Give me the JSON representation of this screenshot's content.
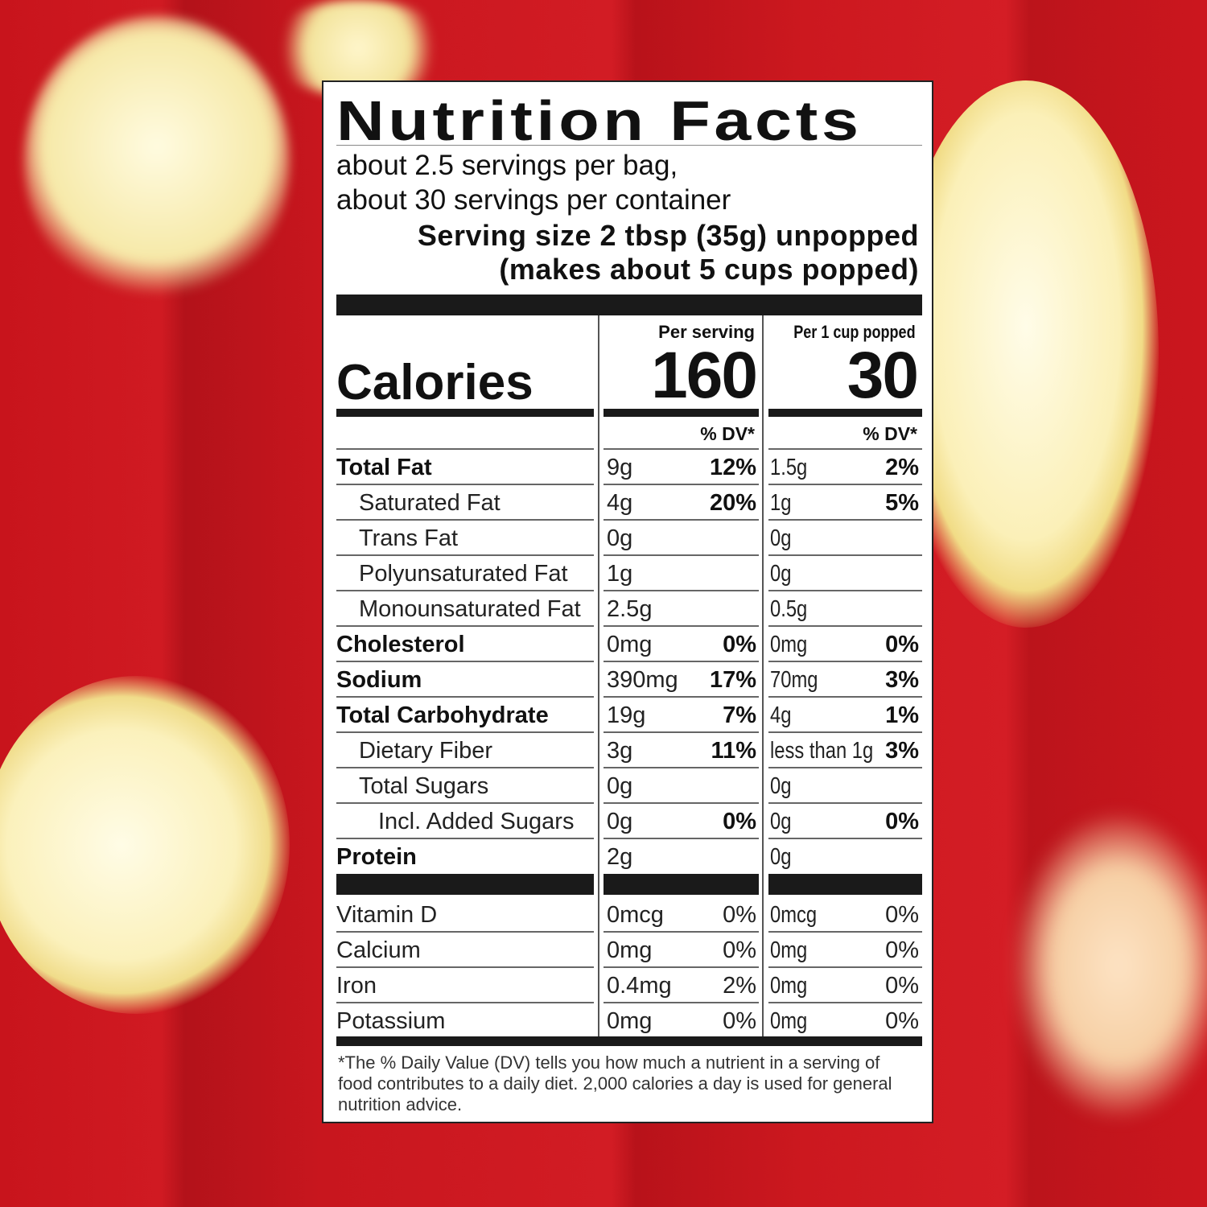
{
  "label": {
    "title": "Nutrition Facts",
    "servings_per_bag": "about 2.5 servings per bag,",
    "servings_per_container": "about 30 servings per container",
    "serving_size": "Serving size 2 tbsp (35g) unpopped",
    "serving_size_popped": "(makes about 5 cups popped)",
    "calories_label": "Calories",
    "col1_header": "Per serving",
    "col2_header": "Per 1 cup popped",
    "calories_col1": "160",
    "calories_col2": "30",
    "dv_header": "% DV*",
    "nutrients": [
      {
        "name": "Total Fat",
        "bold": true,
        "indent": 0,
        "a1": "9g",
        "d1": "12%",
        "a2": "1.5g",
        "d2": "2%"
      },
      {
        "name": "Saturated Fat",
        "bold": false,
        "indent": 1,
        "a1": "4g",
        "d1": "20%",
        "a2": "1g",
        "d2": "5%"
      },
      {
        "name": "Trans Fat",
        "bold": false,
        "indent": 1,
        "a1": "0g",
        "d1": "",
        "a2": "0g",
        "d2": ""
      },
      {
        "name": "Polyunsaturated Fat",
        "bold": false,
        "indent": 1,
        "a1": "1g",
        "d1": "",
        "a2": "0g",
        "d2": ""
      },
      {
        "name": "Monounsaturated Fat",
        "bold": false,
        "indent": 1,
        "a1": "2.5g",
        "d1": "",
        "a2": "0.5g",
        "d2": ""
      },
      {
        "name": "Cholesterol",
        "bold": true,
        "indent": 0,
        "a1": "0mg",
        "d1": "0%",
        "a2": "0mg",
        "d2": "0%"
      },
      {
        "name": "Sodium",
        "bold": true,
        "indent": 0,
        "a1": "390mg",
        "d1": "17%",
        "a2": "70mg",
        "d2": "3%"
      },
      {
        "name": "Total Carbohydrate",
        "bold": true,
        "indent": 0,
        "a1": "19g",
        "d1": "7%",
        "a2": "4g",
        "d2": "1%"
      },
      {
        "name": "Dietary Fiber",
        "bold": false,
        "indent": 1,
        "a1": "3g",
        "d1": "11%",
        "a2": "less than 1g",
        "d2": "3%"
      },
      {
        "name": "Total Sugars",
        "bold": false,
        "indent": 1,
        "a1": "0g",
        "d1": "",
        "a2": "0g",
        "d2": ""
      },
      {
        "name": "Incl. Added Sugars",
        "bold": false,
        "indent": 2,
        "a1": "0g",
        "d1": "0%",
        "a2": "0g",
        "d2": "0%"
      },
      {
        "name": "Protein",
        "bold": true,
        "indent": 0,
        "a1": "2g",
        "d1": "",
        "a2": "0g",
        "d2": ""
      }
    ],
    "vitamins": [
      {
        "name": "Vitamin D",
        "a1": "0mcg",
        "d1": "0%",
        "a2": "0mcg",
        "d2": "0%"
      },
      {
        "name": "Calcium",
        "a1": "0mg",
        "d1": "0%",
        "a2": "0mg",
        "d2": "0%"
      },
      {
        "name": "Iron",
        "a1": "0.4mg",
        "d1": "2%",
        "a2": "0mg",
        "d2": "0%"
      },
      {
        "name": "Potassium",
        "a1": "0mg",
        "d1": "0%",
        "a2": "0mg",
        "d2": "0%"
      }
    ],
    "footnote": "*The % Daily Value (DV) tells you how much a nutrient in a serving of food contributes to a daily diet. 2,000 calories a day is used for general nutrition advice."
  },
  "colors": {
    "background": "#c8161e",
    "popcorn": "#f7eeb0"
  }
}
